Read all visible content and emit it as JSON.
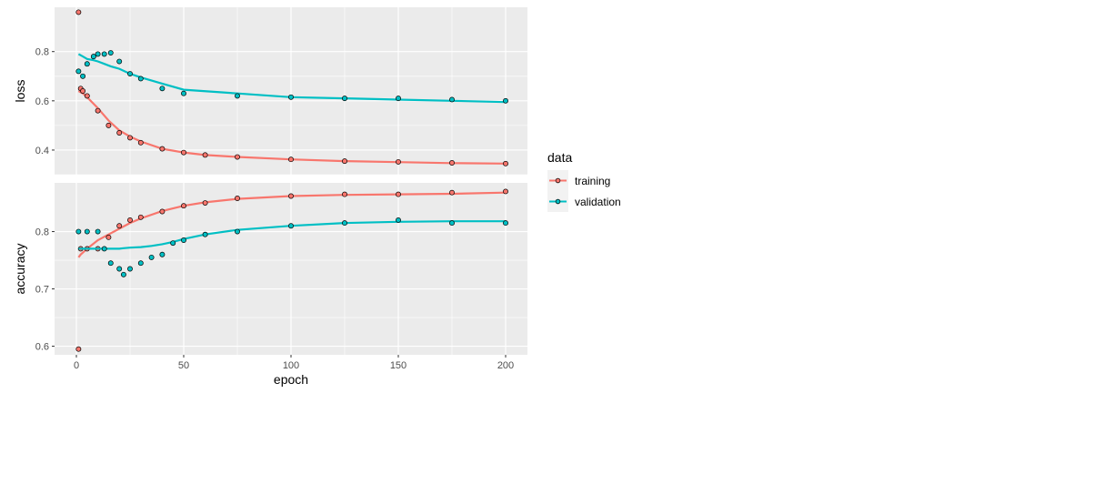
{
  "chart_data": {
    "type": "scatter",
    "x_label": "epoch",
    "x_ticks": [
      0,
      50,
      100,
      150,
      200
    ],
    "x_range": [
      0,
      200
    ],
    "grid": true,
    "legend": {
      "title": "data",
      "position": "right",
      "entries": [
        {
          "label": "training",
          "color": "#F8766D"
        },
        {
          "label": "validation",
          "color": "#00BFC4"
        }
      ]
    },
    "smoothing": "loess",
    "panels": [
      {
        "name": "loss",
        "ylabel": "loss",
        "ylim": [
          0.3,
          0.98
        ],
        "y_ticks": [
          0.4,
          0.6,
          0.8
        ],
        "series": [
          {
            "name": "training",
            "x": [
              1,
              2,
              3,
              5,
              10,
              15,
              20,
              25,
              30,
              40,
              50,
              60,
              75,
              100,
              125,
              150,
              175,
              200
            ],
            "values": [
              0.96,
              0.65,
              0.64,
              0.62,
              0.56,
              0.5,
              0.47,
              0.45,
              0.43,
              0.405,
              0.39,
              0.38,
              0.372,
              0.362,
              0.355,
              0.352,
              0.348,
              0.345
            ],
            "smooth_values": [
              0.64,
              0.635,
              0.63,
              0.615,
              0.57,
              0.52,
              0.48,
              0.455,
              0.435,
              0.405,
              0.39,
              0.38,
              0.372,
              0.362,
              0.355,
              0.351,
              0.347,
              0.345
            ]
          },
          {
            "name": "validation",
            "x": [
              1,
              3,
              5,
              8,
              10,
              13,
              16,
              20,
              25,
              30,
              40,
              50,
              75,
              100,
              125,
              150,
              175,
              200
            ],
            "values": [
              0.72,
              0.7,
              0.75,
              0.78,
              0.79,
              0.79,
              0.795,
              0.76,
              0.71,
              0.69,
              0.65,
              0.63,
              0.62,
              0.615,
              0.61,
              0.61,
              0.605,
              0.6
            ],
            "smooth_values": [
              0.79,
              0.78,
              0.77,
              0.765,
              0.76,
              0.75,
              0.74,
              0.73,
              0.71,
              0.695,
              0.67,
              0.645,
              0.63,
              0.615,
              0.61,
              0.605,
              0.6,
              0.595
            ]
          }
        ]
      },
      {
        "name": "accuracy",
        "ylabel": "accuracy",
        "ylim": [
          0.585,
          0.885
        ],
        "y_ticks": [
          0.6,
          0.7,
          0.8
        ],
        "series": [
          {
            "name": "training",
            "x": [
              1,
              2,
              5,
              10,
              15,
              20,
              25,
              30,
              40,
              50,
              60,
              75,
              100,
              125,
              150,
              175,
              200
            ],
            "values": [
              0.595,
              0.77,
              0.77,
              0.77,
              0.79,
              0.81,
              0.82,
              0.825,
              0.835,
              0.845,
              0.85,
              0.858,
              0.862,
              0.865,
              0.865,
              0.868,
              0.87
            ],
            "smooth_values": [
              0.755,
              0.76,
              0.77,
              0.785,
              0.795,
              0.805,
              0.815,
              0.823,
              0.836,
              0.845,
              0.851,
              0.857,
              0.862,
              0.864,
              0.865,
              0.866,
              0.868
            ]
          },
          {
            "name": "validation",
            "x": [
              1,
              5,
              10,
              13,
              16,
              20,
              22,
              25,
              30,
              35,
              40,
              45,
              50,
              60,
              75,
              100,
              125,
              150,
              175,
              200
            ],
            "values": [
              0.8,
              0.8,
              0.8,
              0.77,
              0.745,
              0.735,
              0.725,
              0.735,
              0.745,
              0.755,
              0.76,
              0.78,
              0.785,
              0.795,
              0.8,
              0.81,
              0.815,
              0.82,
              0.815,
              0.815
            ],
            "smooth_values": [
              0.77,
              0.77,
              0.77,
              0.77,
              0.77,
              0.77,
              0.771,
              0.772,
              0.773,
              0.775,
              0.778,
              0.782,
              0.787,
              0.795,
              0.803,
              0.81,
              0.815,
              0.817,
              0.818,
              0.818
            ]
          }
        ]
      }
    ]
  }
}
